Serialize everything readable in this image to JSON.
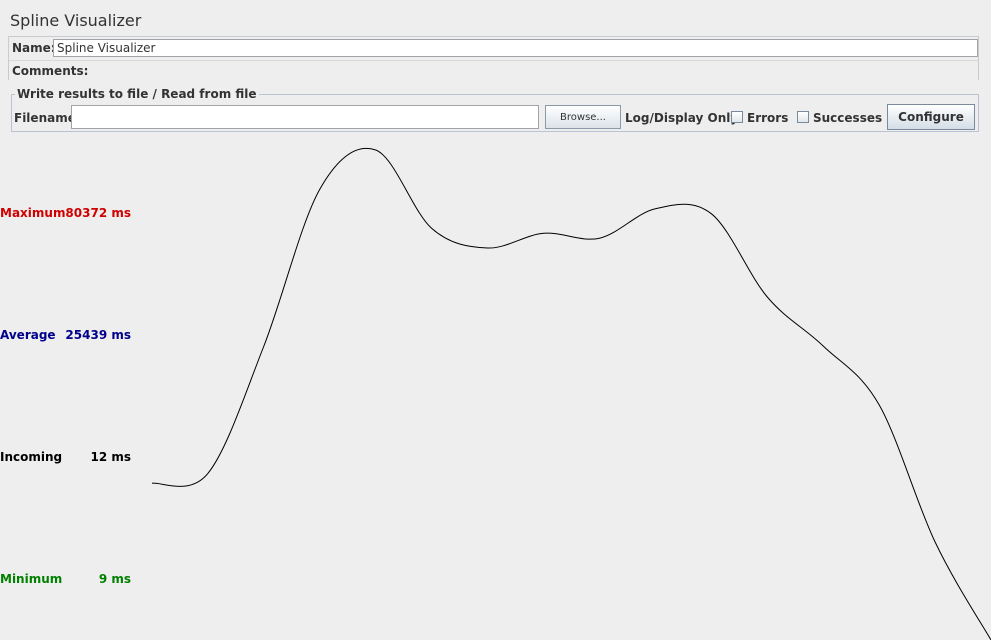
{
  "window": {
    "title": "Spline Visualizer"
  },
  "name_panel": {
    "name_label": "Name:",
    "name_value": "Spline Visualizer",
    "comments_label": "Comments:"
  },
  "file_panel": {
    "legend": "Write results to file / Read from file",
    "filename_label": "Filename",
    "filename_value": "",
    "browse_label": "Browse...",
    "log_display_label": "Log/Display Only:",
    "errors_label": "Errors",
    "errors_checked": false,
    "successes_label": "Successes",
    "successes_checked": false,
    "configure_label": "Configure"
  },
  "stats": {
    "maximum": {
      "label": "Maximum",
      "value": "80372 ms",
      "color": "#d00000"
    },
    "average": {
      "label": "Average",
      "value": "25439 ms",
      "color": "#00008b"
    },
    "incoming": {
      "label": "Incoming",
      "value": "12 ms",
      "color": "#000000"
    },
    "minimum": {
      "label": "Minimum",
      "value": "9 ms",
      "color": "#008000"
    }
  },
  "chart_data": {
    "type": "line",
    "line_color": "#000000",
    "series": [
      {
        "values": [
          0.32,
          0.34,
          0.6,
          0.92,
          1.0,
          0.84,
          0.8,
          0.83,
          0.82,
          0.88,
          0.87,
          0.7,
          0.6,
          0.48,
          0.2,
          0.0
        ]
      }
    ]
  }
}
